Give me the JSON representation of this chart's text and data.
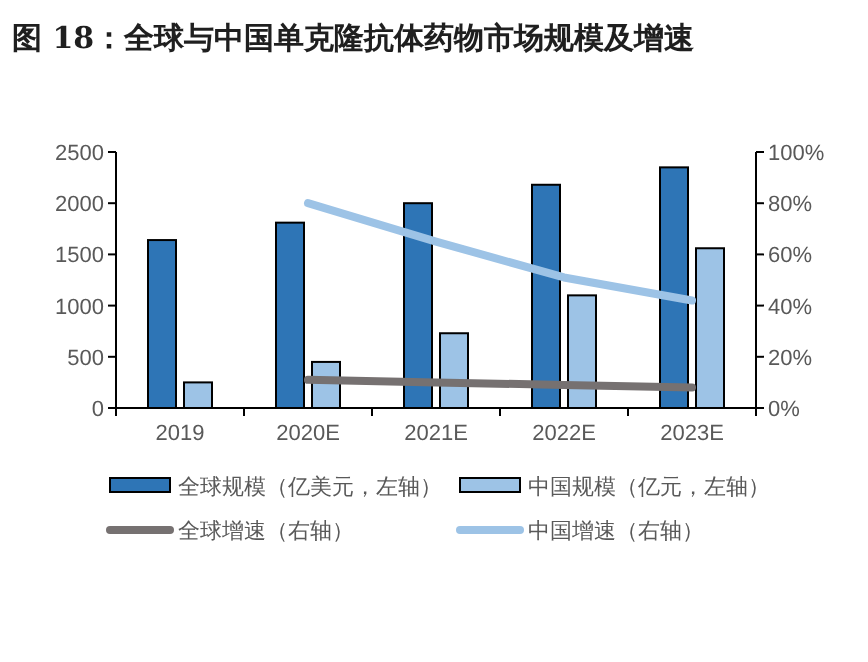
{
  "chart_data": {
    "type": "bar",
    "title": "图 18：全球与中国单克隆抗体药物市场规模及增速",
    "categories": [
      "2019",
      "2020E",
      "2021E",
      "2022E",
      "2023E"
    ],
    "series": [
      {
        "name": "全球规模（亿美元，左轴）",
        "color": "#2e75b6",
        "values": [
          1640,
          1810,
          2000,
          2180,
          2350
        ]
      },
      {
        "name": "中国规模（亿元，左轴）",
        "color": "#9dc3e6",
        "values": [
          250,
          450,
          730,
          1100,
          1560
        ]
      },
      {
        "name": "全球增速（右轴）",
        "type": "line",
        "axis": "y2",
        "color": "#767171",
        "values": [
          null,
          11,
          10,
          9,
          8
        ]
      },
      {
        "name": "中国增速（右轴）",
        "type": "line",
        "axis": "y2",
        "color": "#9dc3e6",
        "values": [
          null,
          80,
          65,
          51,
          42
        ]
      }
    ],
    "ylim": [
      0,
      2500
    ],
    "yticks": [
      0,
      500,
      1000,
      1500,
      2000,
      2500
    ],
    "y2lim": [
      0,
      100
    ],
    "y2ticks": [
      {
        "value": 0,
        "label": "0%"
      },
      {
        "value": 20,
        "label": "20%"
      },
      {
        "value": 40,
        "label": "40%"
      },
      {
        "value": 60,
        "label": "60%"
      },
      {
        "value": 80,
        "label": "80%"
      },
      {
        "value": 100,
        "label": "100%"
      }
    ],
    "legend": "bottom",
    "grid": false
  }
}
